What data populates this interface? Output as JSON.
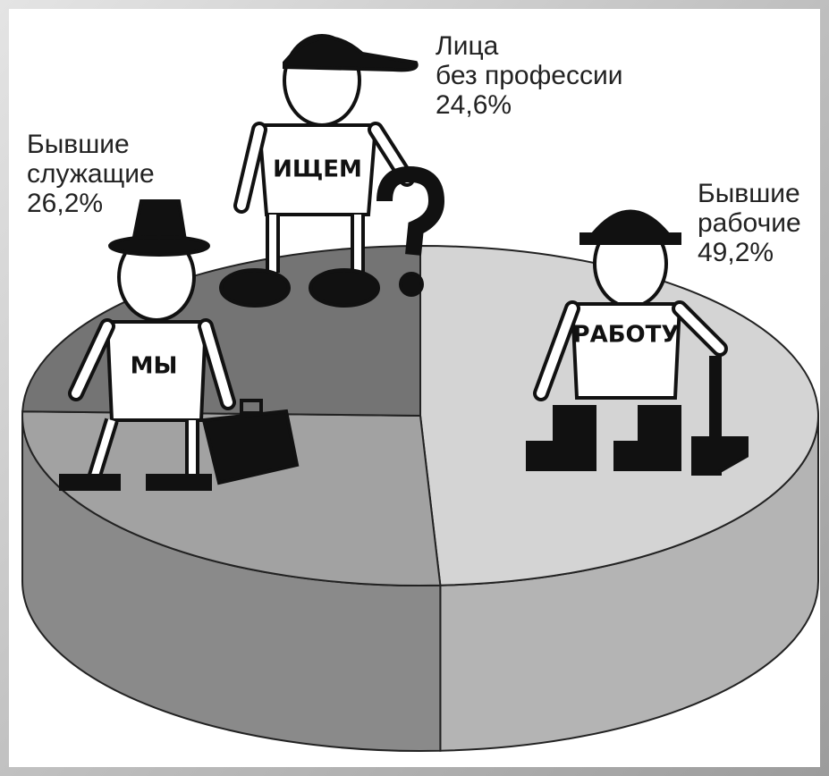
{
  "chart_data": {
    "type": "pie",
    "categories": [
      "Бывшие\nрабочие",
      "Бывшие\nслужащие",
      "Лица\nбез профессии"
    ],
    "values": [
      49.2,
      26.2,
      24.6
    ],
    "value_labels": [
      "49,2%",
      "26,2%",
      "24,6%"
    ],
    "colors": [
      "#d4d4d4",
      "#a2a2a2",
      "#747474"
    ],
    "annotations": [
      "РАБОТУ",
      "МЫ",
      "ИЩЕМ"
    ]
  }
}
